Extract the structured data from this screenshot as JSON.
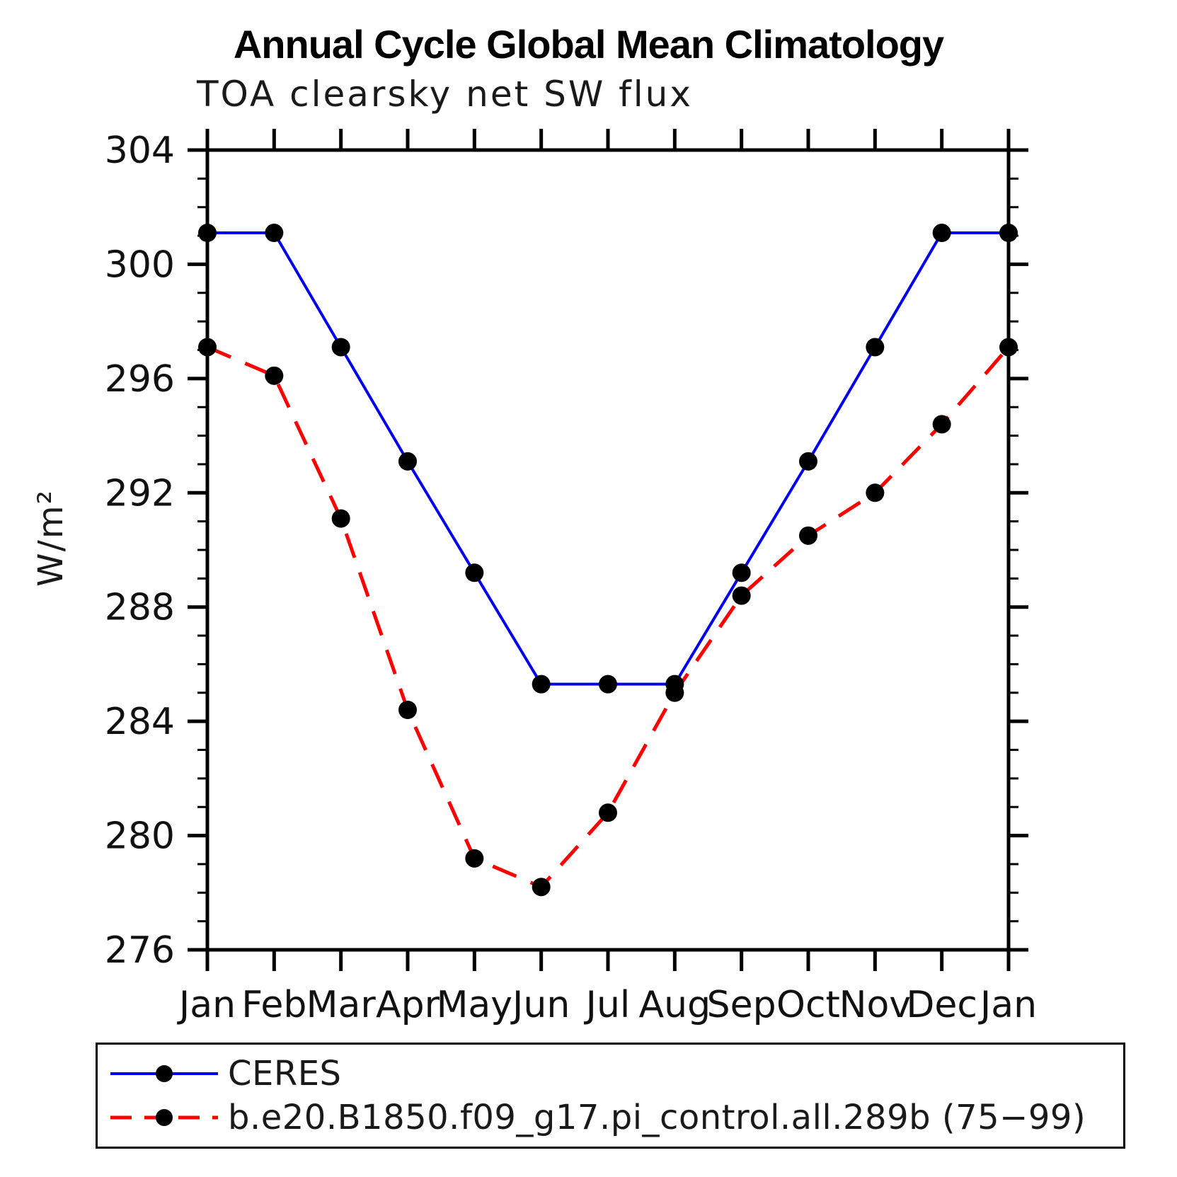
{
  "chart_data": {
    "type": "line",
    "title": "Annual Cycle Global Mean Climatology",
    "subtitle": "TOA clearsky net SW flux",
    "ylabel": "W/m²",
    "categories": [
      "Jan",
      "Feb",
      "Mar",
      "Apr",
      "May",
      "Jun",
      "Jul",
      "Aug",
      "Sep",
      "Oct",
      "Nov",
      "Dec",
      "Jan"
    ],
    "ylim": [
      276,
      304
    ],
    "yticks": [
      276,
      280,
      284,
      288,
      292,
      296,
      300,
      304
    ],
    "ytick_minor_step": 1,
    "grid": false,
    "legend_position": "bottom",
    "marker": {
      "shape": "circle",
      "color": "#000000"
    },
    "series": [
      {
        "name": "CERES",
        "color": "#0000ee",
        "style": "solid",
        "values": [
          301.1,
          301.1,
          297.1,
          293.1,
          289.2,
          285.3,
          285.3,
          285.3,
          289.2,
          293.1,
          297.1,
          301.1,
          301.1
        ]
      },
      {
        "name": "b.e20.B1850.f09_g17.pi_control.all.289b (75−99)",
        "color": "#ff0000",
        "style": "dashed",
        "values": [
          297.1,
          296.1,
          291.1,
          284.4,
          279.2,
          278.2,
          280.8,
          285.0,
          288.4,
          290.5,
          292.0,
          294.4,
          297.1
        ]
      }
    ]
  }
}
